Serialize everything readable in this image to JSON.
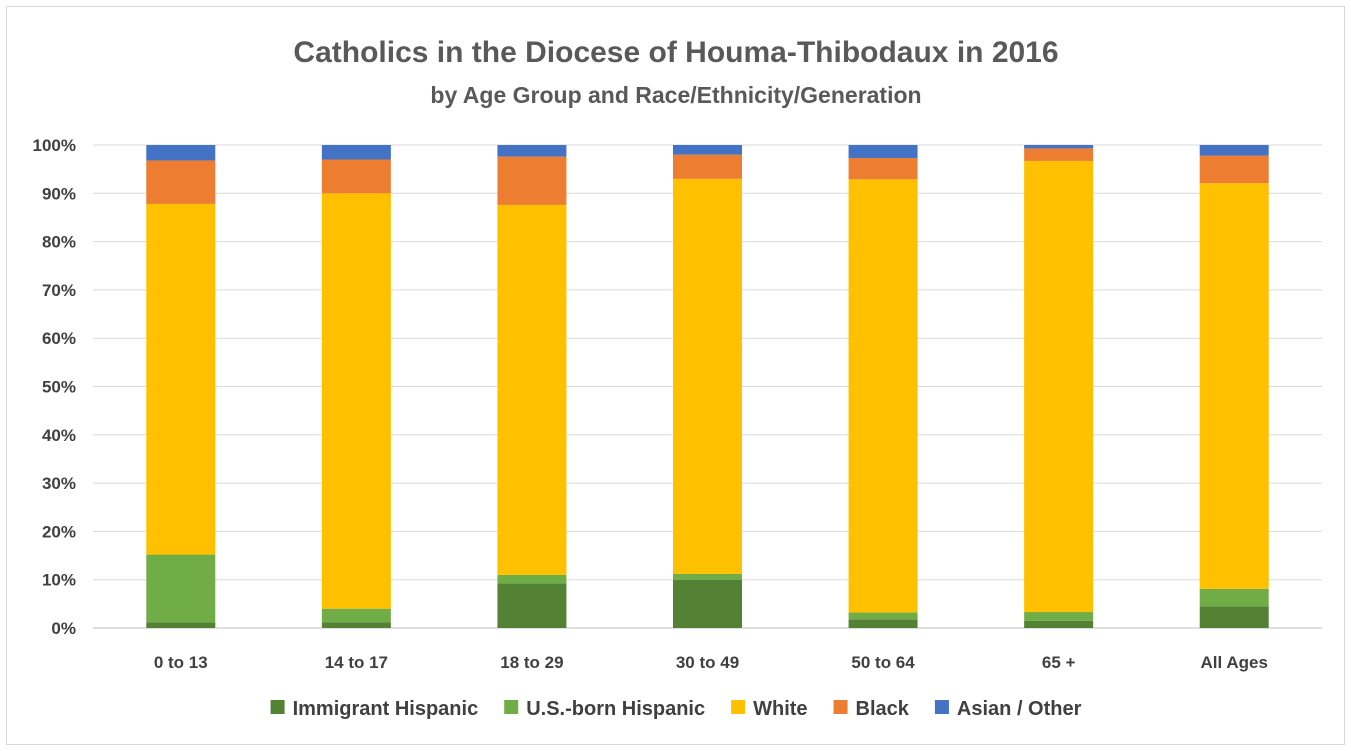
{
  "chart_data": {
    "type": "bar",
    "stacked": true,
    "title": "Catholics in the Diocese of Houma-Thibodaux in 2016",
    "subtitle": "by Age Group and Race/Ethnicity/Generation",
    "xlabel": "",
    "ylabel": "",
    "ylim": [
      0,
      100
    ],
    "yticks": [
      "0%",
      "10%",
      "20%",
      "30%",
      "40%",
      "50%",
      "60%",
      "70%",
      "80%",
      "90%",
      "100%"
    ],
    "grid": true,
    "legend_position": "bottom",
    "categories": [
      "0 to 13",
      "14 to 17",
      "18 to 29",
      "30 to 49",
      "50 to 64",
      "65 +",
      "All Ages"
    ],
    "series": [
      {
        "name": "Immigrant Hispanic",
        "color": "#548235",
        "values": [
          1.2,
          1.2,
          9.2,
          10.0,
          1.8,
          1.5,
          4.5
        ]
      },
      {
        "name": "U.S.-born Hispanic",
        "color": "#70ad47",
        "values": [
          14.0,
          2.8,
          1.8,
          1.2,
          1.4,
          1.8,
          3.6
        ]
      },
      {
        "name": "White",
        "color": "#ffc000",
        "values": [
          72.6,
          86.0,
          76.6,
          81.8,
          89.7,
          93.4,
          84.0
        ]
      },
      {
        "name": "Black",
        "color": "#ed7d31",
        "values": [
          9.0,
          7.0,
          10.0,
          5.0,
          4.4,
          2.6,
          5.7
        ]
      },
      {
        "name": "Asian / Other",
        "color": "#4472c4",
        "values": [
          3.2,
          3.0,
          2.4,
          2.0,
          2.7,
          0.7,
          2.2
        ]
      }
    ]
  }
}
